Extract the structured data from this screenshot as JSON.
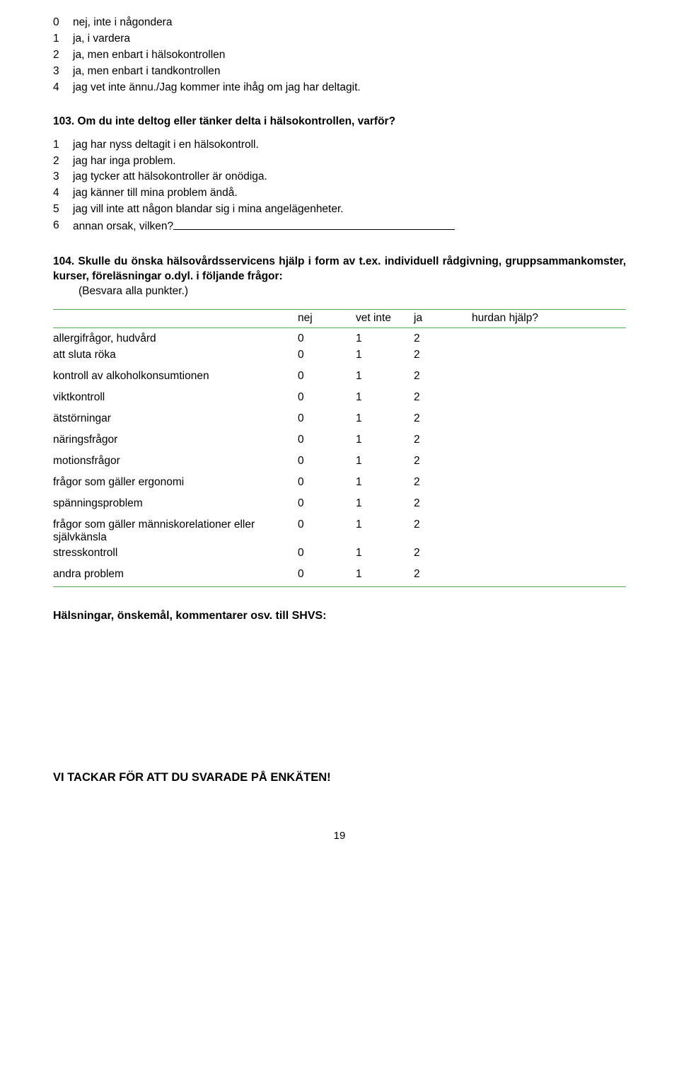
{
  "q102": {
    "options": [
      {
        "num": "0",
        "text": "nej, inte i någondera"
      },
      {
        "num": "1",
        "text": "ja, i vardera"
      },
      {
        "num": "2",
        "text": "ja, men enbart i hälsokontrollen"
      },
      {
        "num": "3",
        "text": "ja, men enbart i tandkontrollen"
      },
      {
        "num": "4",
        "text": "jag vet inte ännu./Jag kommer inte ihåg om jag har deltagit."
      }
    ]
  },
  "q103": {
    "title": "103. Om du inte deltog eller tänker delta i hälsokontrollen, varför?",
    "options": [
      {
        "num": "1",
        "text": "jag har nyss deltagit i en hälsokontroll."
      },
      {
        "num": "2",
        "text": "jag har inga problem."
      },
      {
        "num": "3",
        "text": "jag tycker att hälsokontroller är onödiga."
      },
      {
        "num": "4",
        "text": "jag känner till mina problem ändå."
      },
      {
        "num": "5",
        "text": "jag vill inte att någon blandar sig i mina angelägenheter."
      },
      {
        "num": "6",
        "text": "annan orsak, vilken?"
      }
    ]
  },
  "q104": {
    "lead": "104. Skulle du önska hälsovårdsservicens hjälp i form av t.ex. individuell rådgivning, gruppsammankomster, kurser, föreläsningar o.dyl. i följande frågor:",
    "sub": "(Besvara alla punkter.)",
    "columns": [
      "",
      "nej",
      "vet inte",
      "ja",
      "hurdan hjälp?"
    ],
    "rows": [
      {
        "label": "allergifrågor, hudvård",
        "v": [
          "0",
          "1",
          "2"
        ]
      },
      {
        "label": "att sluta röka",
        "v": [
          "0",
          "1",
          "2"
        ]
      },
      {
        "label": "kontroll av alkoholkonsumtionen",
        "v": [
          "0",
          "1",
          "2"
        ]
      },
      {
        "label": "viktkontroll",
        "v": [
          "0",
          "1",
          "2"
        ]
      },
      {
        "label": "ätstörningar",
        "v": [
          "0",
          "1",
          "2"
        ]
      },
      {
        "label": "näringsfrågor",
        "v": [
          "0",
          "1",
          "2"
        ]
      },
      {
        "label": "motionsfrågor",
        "v": [
          "0",
          "1",
          "2"
        ]
      },
      {
        "label": "frågor som gäller ergonomi",
        "v": [
          "0",
          "1",
          "2"
        ]
      },
      {
        "label": "spänningsproblem",
        "v": [
          "0",
          "1",
          "2"
        ]
      },
      {
        "label": "frågor som gäller människorelationer eller självkänsla",
        "v": [
          "0",
          "1",
          "2"
        ]
      },
      {
        "label": "stresskontroll",
        "v": [
          "0",
          "1",
          "2"
        ]
      },
      {
        "label": "andra problem",
        "v": [
          "0",
          "1",
          "2"
        ]
      }
    ]
  },
  "greeting": "Hälsningar, önskemål, kommentarer osv. till SHVS:",
  "thanks": "VI TACKAR FÖR ATT DU SVARADE PÅ ENKÄTEN!",
  "pageNum": "19",
  "style": {
    "ruleColor": "#50aa50",
    "textColor": "#000000",
    "bg": "#ffffff",
    "baseFontSize": 15.5
  }
}
